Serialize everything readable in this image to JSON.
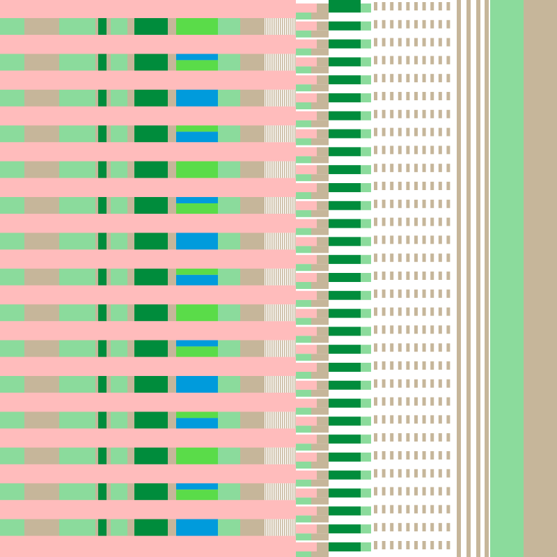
{
  "palette": {
    "pink": "#ffbcbc",
    "mint": "#8bdb9c",
    "tan": "#c6b69a",
    "green": "#008c3c",
    "lime": "#5adc49",
    "blue": "#009bdc",
    "white": "#ffffff"
  },
  "stripe_rows": 15,
  "accent_pattern": [
    "lime",
    "blue-over-lime",
    "blue",
    "lime-over-blue"
  ]
}
